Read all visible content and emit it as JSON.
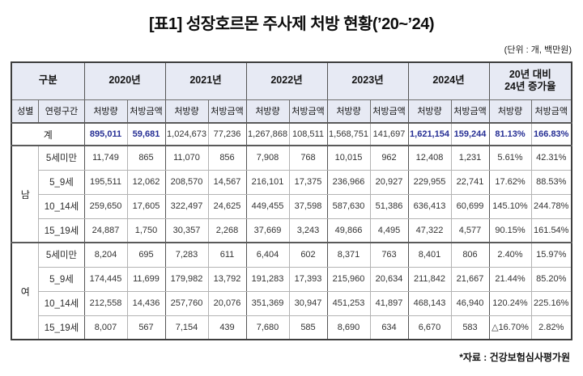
{
  "title": "[표1] 성장호르몬 주사제 처방 현황(’20~’24)",
  "unit_note": "(단위 : 개, 백만원)",
  "source_note": "*자료 : 건강보험심사평가원",
  "colors": {
    "header_bg": "#e7eaf4",
    "accent_blue": "#252e94",
    "border_dark": "#555555",
    "border_light": "#b3b3b3"
  },
  "table": {
    "col_group_header": "구분",
    "year_headers": [
      "2020년",
      "2021년",
      "2022년",
      "2023년",
      "2024년"
    ],
    "growth_header_line1": "20년 대비",
    "growth_header_line2": "24년 증가율",
    "sub_headers": {
      "gender": "성별",
      "age": "연령구간",
      "qty": "처방량",
      "amt": "처방금액"
    },
    "total_row": {
      "label": "계",
      "values": [
        "895,011",
        "59,681",
        "1,024,673",
        "77,236",
        "1,267,868",
        "108,511",
        "1,568,751",
        "141,697",
        "1,621,154",
        "159,244",
        "81.13%",
        "166.83%"
      ]
    },
    "groups": [
      {
        "gender": "남",
        "rows": [
          {
            "age": "5세미만",
            "values": [
              "11,749",
              "865",
              "11,070",
              "856",
              "7,908",
              "768",
              "10,015",
              "962",
              "12,408",
              "1,231",
              "5.61%",
              "42.31%"
            ]
          },
          {
            "age": "5_9세",
            "values": [
              "195,511",
              "12,062",
              "208,570",
              "14,567",
              "216,101",
              "17,375",
              "236,966",
              "20,927",
              "229,955",
              "22,741",
              "17.62%",
              "88.53%"
            ]
          },
          {
            "age": "10_14세",
            "values": [
              "259,650",
              "17,605",
              "322,497",
              "24,625",
              "449,455",
              "37,598",
              "587,630",
              "51,386",
              "636,413",
              "60,699",
              "145.10%",
              "244.78%"
            ]
          },
          {
            "age": "15_19세",
            "values": [
              "24,887",
              "1,750",
              "30,357",
              "2,268",
              "37,669",
              "3,243",
              "49,866",
              "4,495",
              "47,322",
              "4,577",
              "90.15%",
              "161.54%"
            ]
          }
        ]
      },
      {
        "gender": "여",
        "rows": [
          {
            "age": "5세미만",
            "values": [
              "8,204",
              "695",
              "7,283",
              "611",
              "6,404",
              "602",
              "8,371",
              "763",
              "8,401",
              "806",
              "2.40%",
              "15.97%"
            ]
          },
          {
            "age": "5_9세",
            "values": [
              "174,445",
              "11,699",
              "179,982",
              "13,792",
              "191,283",
              "17,393",
              "215,960",
              "20,634",
              "211,842",
              "21,667",
              "21.44%",
              "85.20%"
            ]
          },
          {
            "age": "10_14세",
            "values": [
              "212,558",
              "14,436",
              "257,760",
              "20,076",
              "351,369",
              "30,947",
              "451,253",
              "41,897",
              "468,143",
              "46,940",
              "120.24%",
              "225.16%"
            ]
          },
          {
            "age": "15_19세",
            "values": [
              "8,007",
              "567",
              "7,154",
              "439",
              "7,680",
              "585",
              "8,690",
              "634",
              "6,670",
              "583",
              "△16.70%",
              "2.82%"
            ]
          }
        ]
      }
    ]
  }
}
